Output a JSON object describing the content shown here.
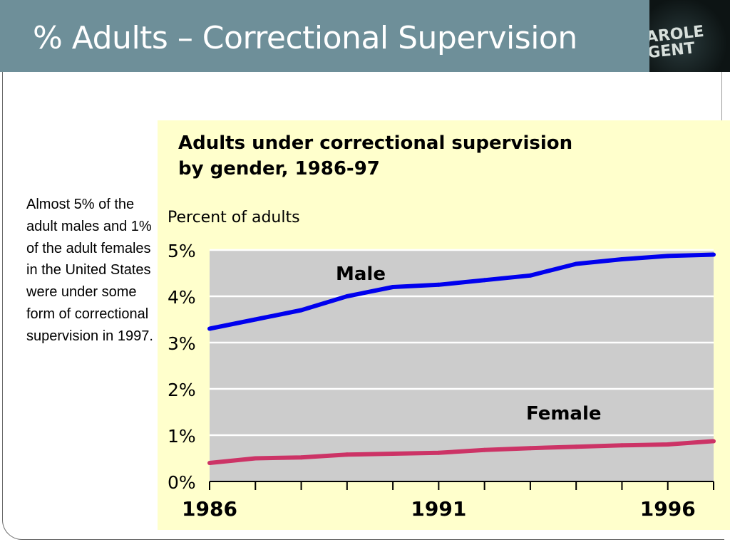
{
  "slide": {
    "title": "% Adults – Correctional Supervision",
    "badge_lines": [
      "AROLE",
      "GENT"
    ]
  },
  "caption": "Almost 5% of the adult males and 1% of the adult females in the United States were under some form of correctional supervision in 1997.",
  "colors": {
    "header_bg": "#6e8f99",
    "panel_bg": "#ffffcc",
    "plot_bg": "#cccccc",
    "male": "#0000ee",
    "female": "#cc3366"
  },
  "chart_data": {
    "type": "line",
    "title_lines": [
      "Adults under correctional supervision",
      "by gender, 1986-97"
    ],
    "ylabel": "Percent of adults",
    "ylim": [
      0,
      5
    ],
    "y_ticks": [
      "0%",
      "1%",
      "2%",
      "3%",
      "4%",
      "5%"
    ],
    "y_tick_values": [
      0,
      1,
      2,
      3,
      4,
      5
    ],
    "xlim": [
      1986,
      1997
    ],
    "x_ticks": [
      1986,
      1987,
      1988,
      1989,
      1990,
      1991,
      1992,
      1993,
      1994,
      1995,
      1996,
      1997
    ],
    "x_tick_labels": [
      {
        "value": 1986,
        "label": "1986"
      },
      {
        "value": 1991,
        "label": "1991"
      },
      {
        "value": 1996,
        "label": "1996"
      }
    ],
    "grid": true,
    "series": [
      {
        "name": "Male",
        "x": [
          1986,
          1987,
          1988,
          1989,
          1990,
          1991,
          1992,
          1993,
          1994,
          1995,
          1996,
          1997
        ],
        "values": [
          3.3,
          3.5,
          3.7,
          4.0,
          4.2,
          4.25,
          4.35,
          4.45,
          4.7,
          4.8,
          4.87,
          4.9
        ]
      },
      {
        "name": "Female",
        "x": [
          1986,
          1987,
          1988,
          1989,
          1990,
          1991,
          1992,
          1993,
          1994,
          1995,
          1996,
          1997
        ],
        "values": [
          0.4,
          0.5,
          0.52,
          0.58,
          0.6,
          0.62,
          0.68,
          0.72,
          0.75,
          0.78,
          0.8,
          0.87
        ]
      }
    ]
  }
}
